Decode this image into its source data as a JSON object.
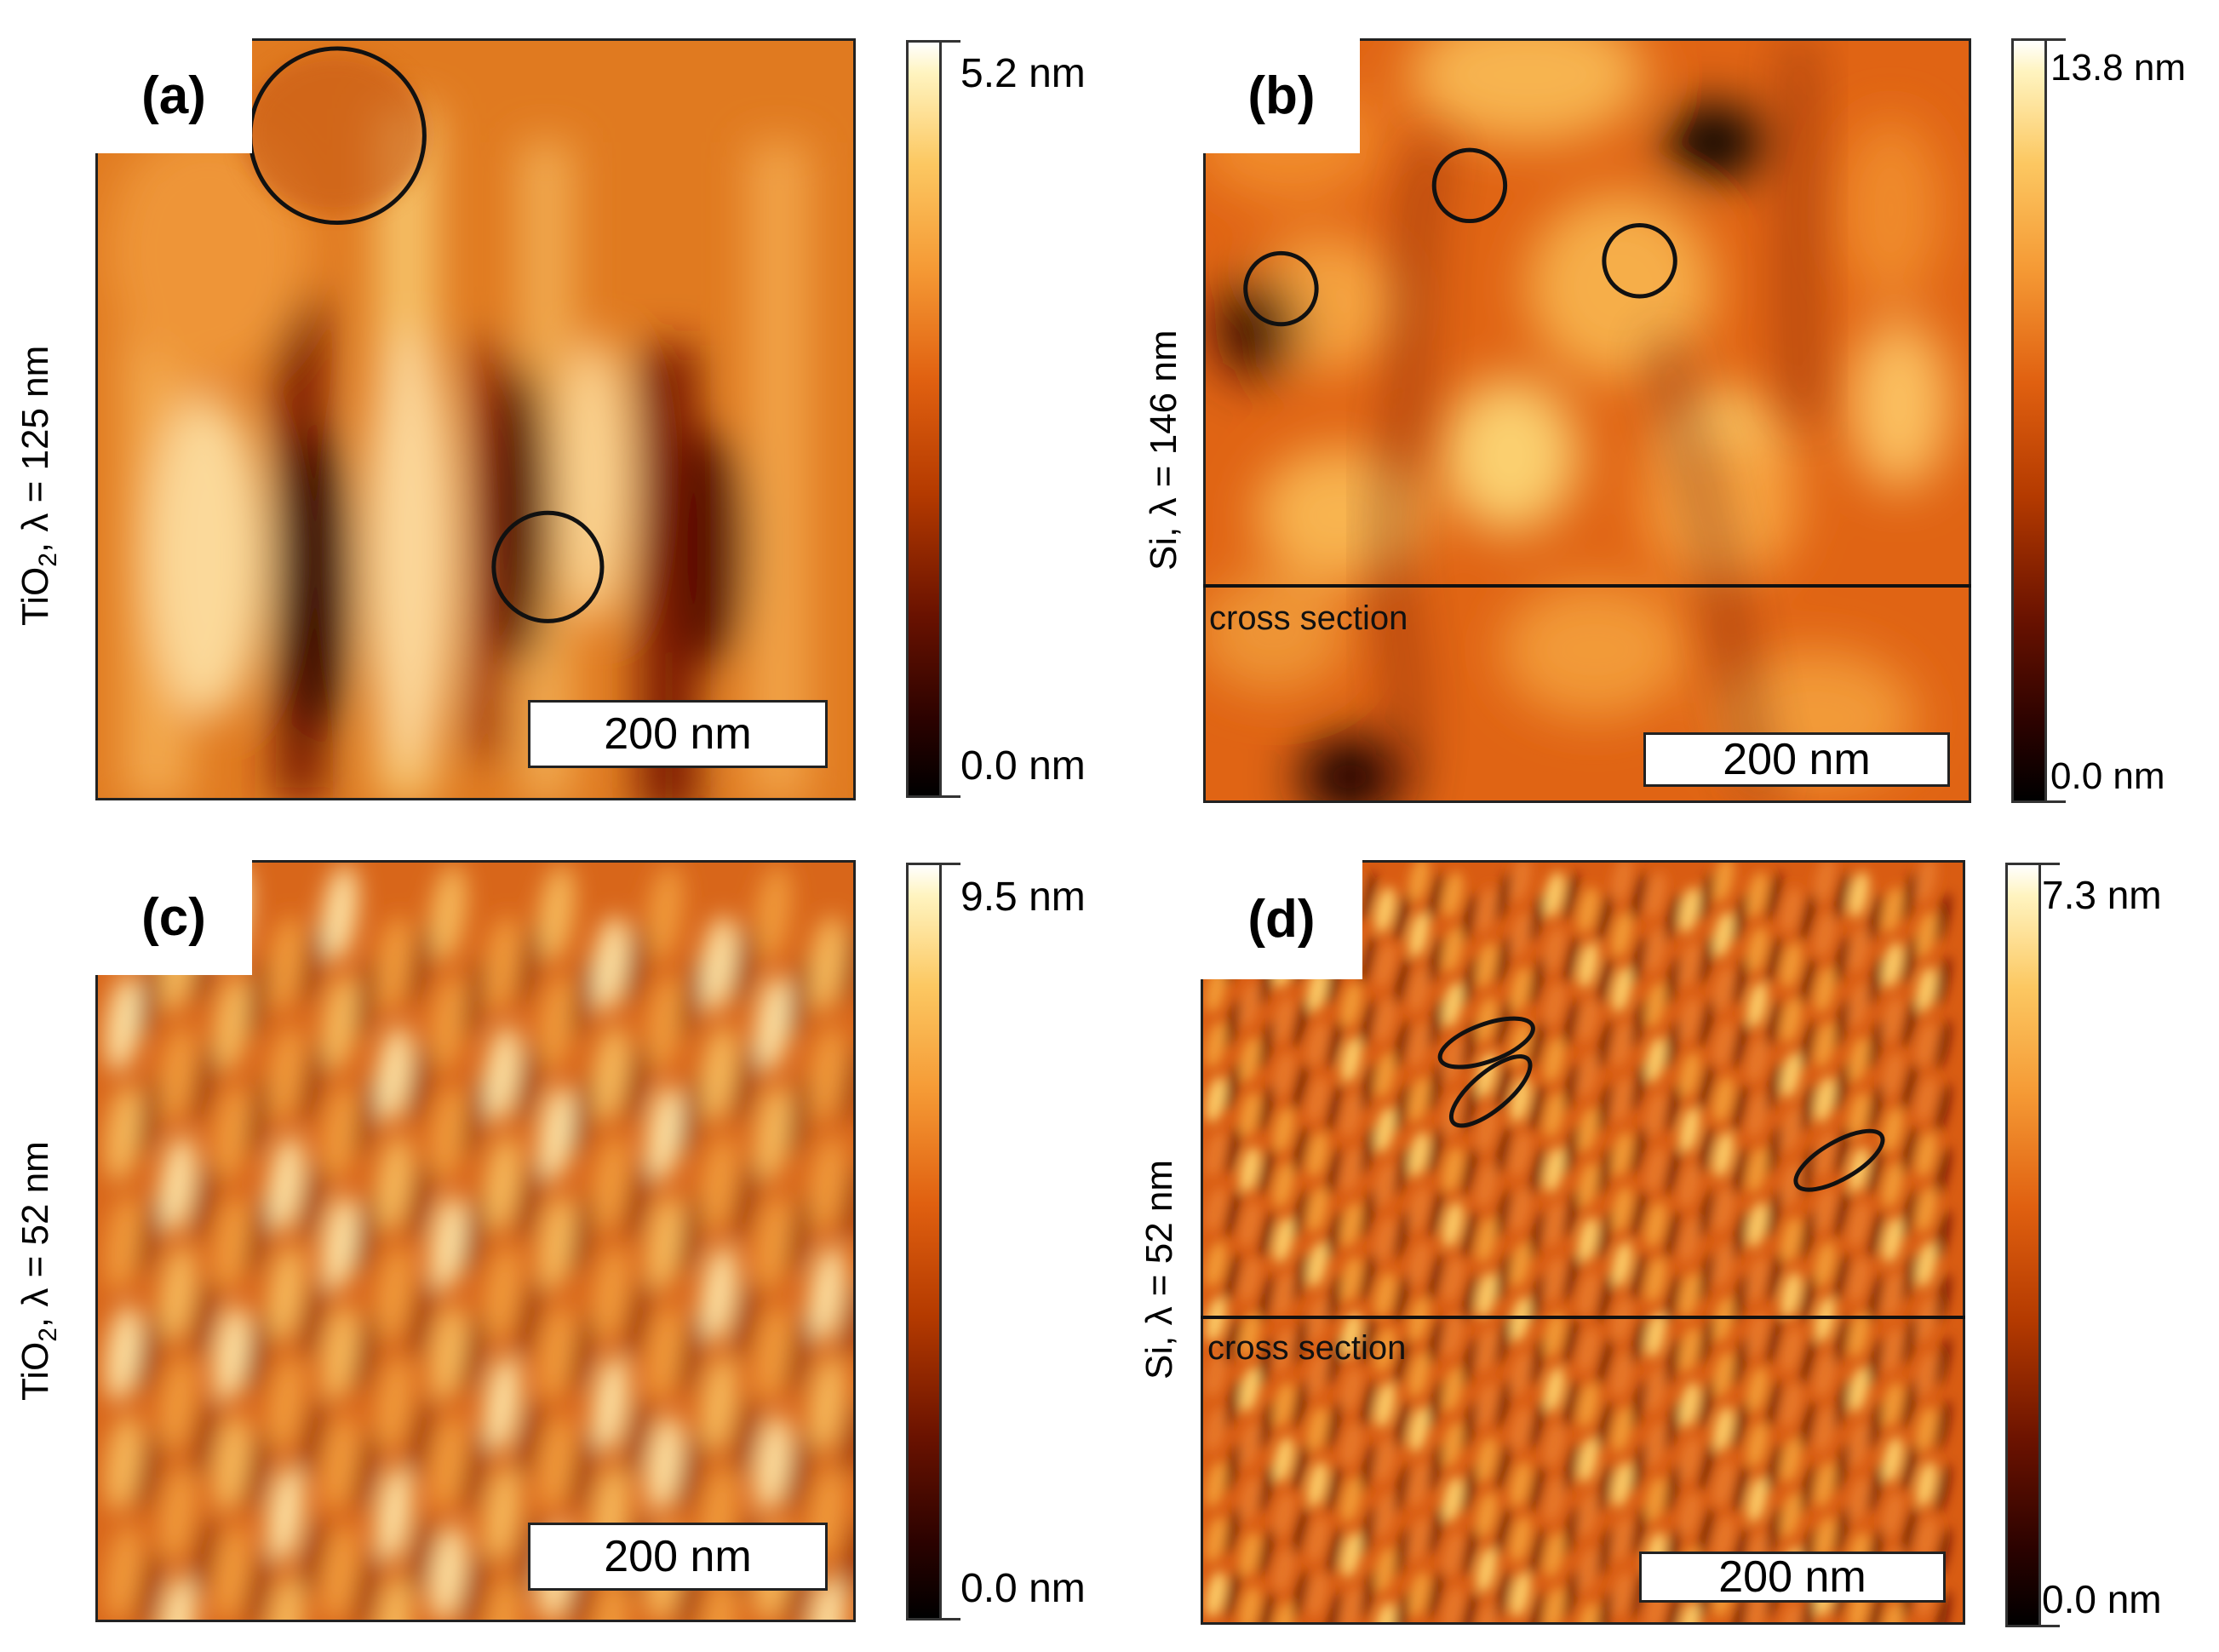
{
  "panels": [
    {
      "id": "a",
      "label": "(a)",
      "material": "TiO",
      "subscript": "2",
      "lambda_text": ", λ = 125 nm",
      "scale_bar": "200 nm",
      "colorbar_max": "5.2 nm",
      "colorbar_min": "0.0 nm"
    },
    {
      "id": "b",
      "label": "(b)",
      "material": "Si",
      "subscript": "",
      "lambda_text": ", λ = 146 nm",
      "scale_bar": "200 nm",
      "colorbar_max": "13.8 nm",
      "colorbar_min": "0.0 nm",
      "cross_section": "cross section"
    },
    {
      "id": "c",
      "label": "(c)",
      "material": "TiO",
      "subscript": "2",
      "lambda_text": ", λ = 52 nm",
      "scale_bar": "200 nm",
      "colorbar_max": "9.5 nm",
      "colorbar_min": "0.0 nm"
    },
    {
      "id": "d",
      "label": "(d)",
      "material": "Si",
      "subscript": "",
      "lambda_text": ", λ = 52 nm",
      "scale_bar": "200 nm",
      "colorbar_max": "7.3 nm",
      "colorbar_min": "0.0 nm",
      "cross_section": "cross section"
    }
  ],
  "colors": {
    "colormap_low": "#000000",
    "colormap_mid": "#e06010",
    "colormap_high": "#ffffff",
    "annotation": "#111111"
  }
}
